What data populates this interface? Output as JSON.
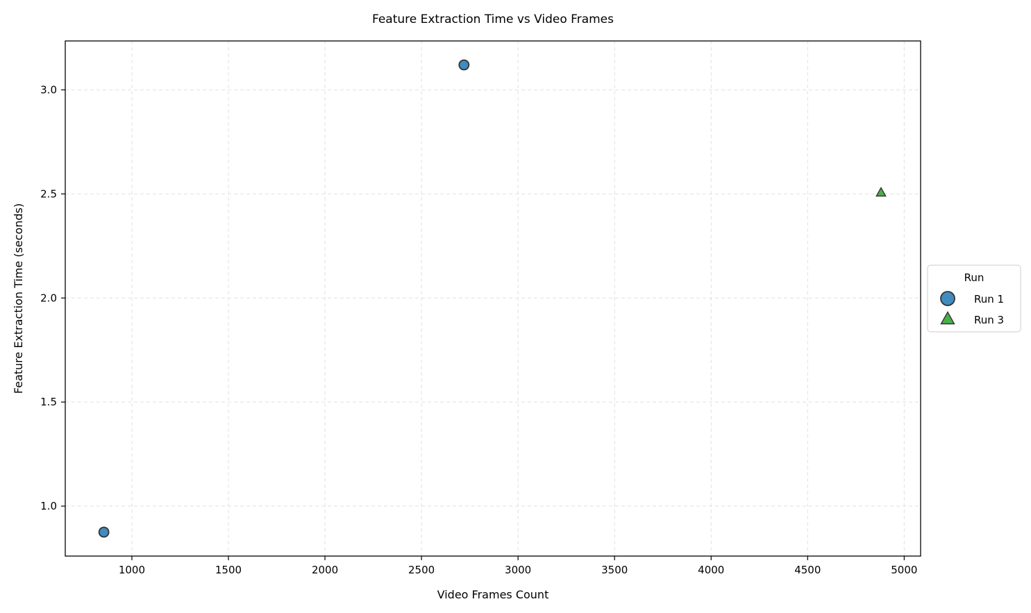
{
  "chart_data": {
    "type": "scatter",
    "title": "Feature Extraction Time vs Video Frames",
    "xlabel": "Video Frames Count",
    "ylabel": "Feature Extraction Time (seconds)",
    "xlim": [
      655,
      5085
    ],
    "ylim": [
      0.76,
      3.235
    ],
    "x_ticks": [
      1000,
      1500,
      2000,
      2500,
      3000,
      3500,
      4000,
      4500,
      5000
    ],
    "x_tick_labels": [
      "1000",
      "1500",
      "2000",
      "2500",
      "3000",
      "3500",
      "4000",
      "4500",
      "5000"
    ],
    "y_ticks": [
      1.0,
      1.5,
      2.0,
      2.5,
      3.0
    ],
    "y_tick_labels": [
      "1.0",
      "1.5",
      "2.0",
      "2.5",
      "3.0"
    ],
    "grid": true,
    "legend": {
      "title": "Run",
      "placement": "outside-right"
    },
    "series": [
      {
        "name": "Run 1",
        "marker": "circle",
        "color": "#1f77b4",
        "points": [
          {
            "x": 855,
            "y": 0.875
          },
          {
            "x": 2720,
            "y": 3.12
          }
        ]
      },
      {
        "name": "Run 3",
        "marker": "triangle",
        "color": "#2ca02c",
        "points": [
          {
            "x": 4880,
            "y": 2.505
          }
        ]
      }
    ]
  }
}
